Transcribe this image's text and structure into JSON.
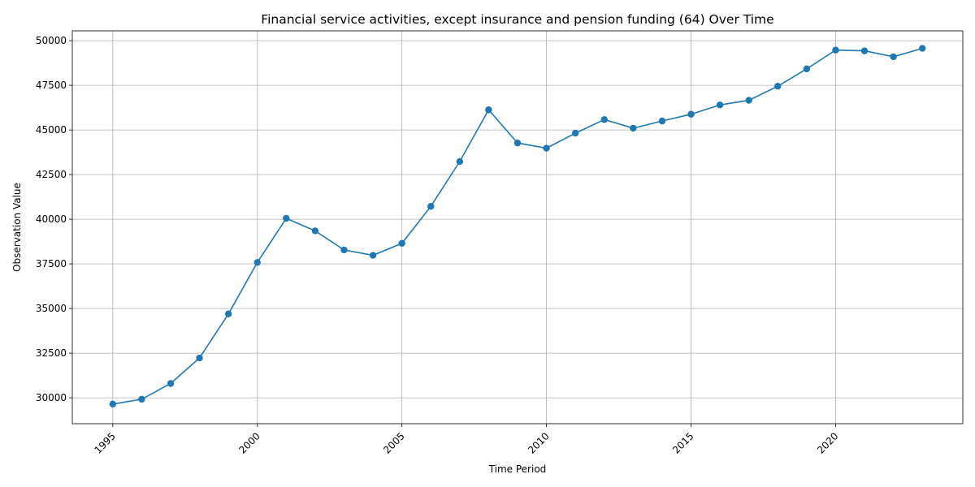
{
  "chart_data": {
    "type": "line",
    "title": "Financial service activities, except insurance and pension funding (64) Over Time",
    "xlabel": "Time Period",
    "ylabel": "Observation Value",
    "x": [
      1995,
      1996,
      1997,
      1998,
      1999,
      2000,
      2001,
      2002,
      2003,
      2004,
      2005,
      2006,
      2007,
      2008,
      2009,
      2010,
      2011,
      2012,
      2013,
      2014,
      2015,
      2016,
      2017,
      2018,
      2019,
      2020,
      2021,
      2022,
      2023
    ],
    "series": [
      {
        "values": [
          29650,
          29920,
          30800,
          32230,
          34700,
          37580,
          40050,
          39350,
          38280,
          37980,
          38650,
          40720,
          43230,
          46130,
          44270,
          43980,
          44820,
          45580,
          45100,
          45500,
          45880,
          46400,
          46660,
          47450,
          48420,
          49470,
          49430,
          49100,
          49570
        ],
        "color": "#1f77b4",
        "marker": "circle"
      }
    ],
    "xlim": [
      1993.6,
      2024.4
    ],
    "ylim": [
      28550,
      50550
    ],
    "xticks": [
      1995,
      2000,
      2005,
      2010,
      2015,
      2020
    ],
    "xtick_labels": [
      "1995",
      "2000",
      "2005",
      "2010",
      "2015",
      "2020"
    ],
    "xtick_rotation": 45,
    "yticks": [
      30000,
      32500,
      35000,
      37500,
      40000,
      42500,
      45000,
      47500,
      50000
    ],
    "ytick_labels": [
      "30000",
      "32500",
      "35000",
      "37500",
      "40000",
      "42500",
      "45000",
      "47500",
      "50000"
    ],
    "grid": true,
    "grid_color": "#b0b0b0",
    "legend": false
  }
}
